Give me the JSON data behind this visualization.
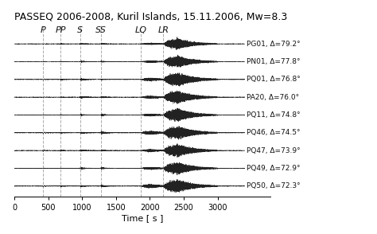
{
  "title": "PASSEQ 2006-2008, Kuril Islands, 15.11.2006, Mw=8.3",
  "xlabel": "Time [ s ]",
  "xlim": [
    0,
    3400
  ],
  "xticks": [
    0,
    500,
    1000,
    1500,
    2000,
    2500,
    3000
  ],
  "stations": [
    "PG01",
    "PN01",
    "PQ01",
    "PA20",
    "PQ11",
    "PQ46",
    "PQ47",
    "PQ49",
    "PQ50"
  ],
  "deltas": [
    "79.2",
    "77.8",
    "76.8",
    "76.0",
    "74.8",
    "74.5",
    "73.9",
    "72.9",
    "72.3"
  ],
  "phase_labels": [
    "P",
    "PP",
    "S",
    "SS",
    "LQ",
    "LR"
  ],
  "phase_positions": [
    420,
    680,
    970,
    1280,
    1870,
    2200
  ],
  "background_color": "#ffffff",
  "line_color": "#222222",
  "grid_color": "#aaaaaa",
  "title_fontsize": 9,
  "label_fontsize": 8,
  "tick_fontsize": 8,
  "phase_fontsize": 9
}
